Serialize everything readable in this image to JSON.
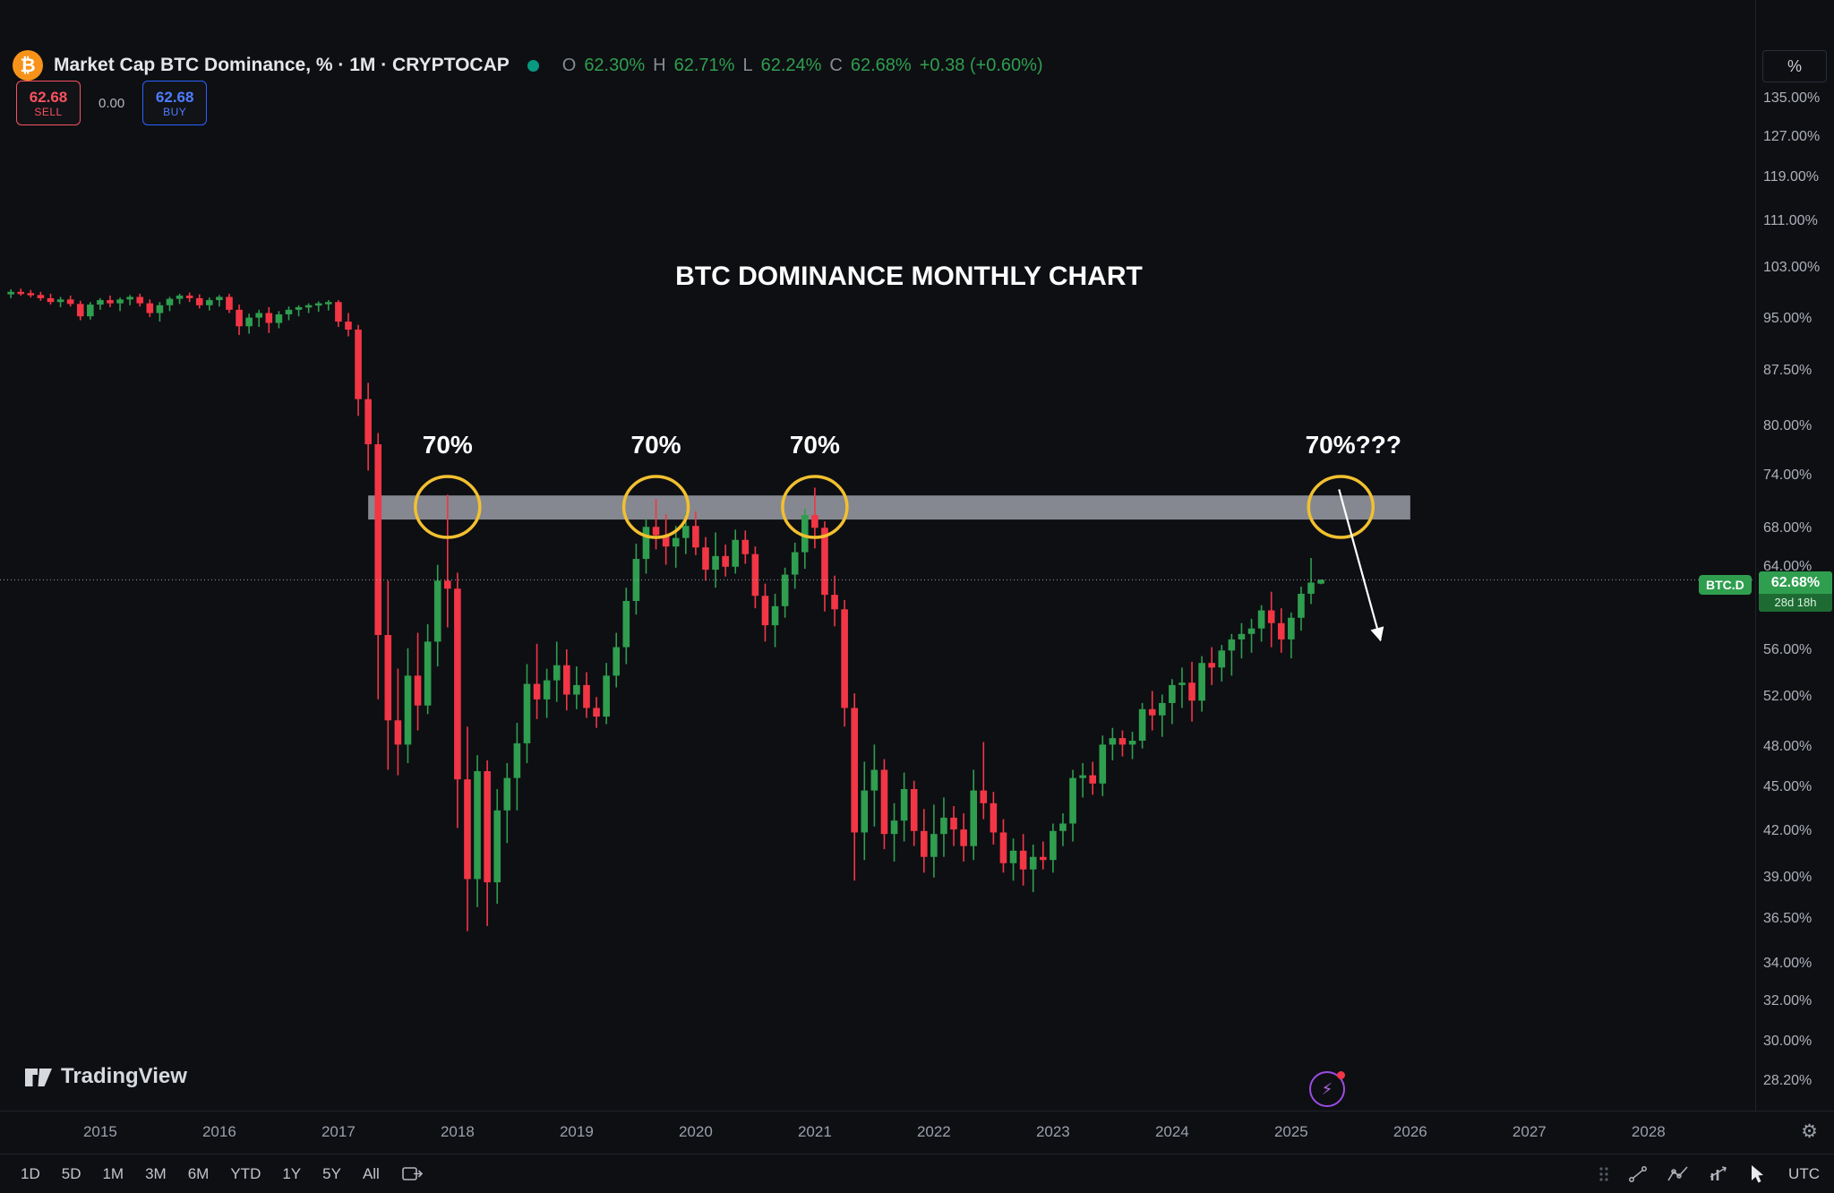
{
  "header": {
    "symbol": "Market Cap BTC Dominance, % · 1M · CRYPTOCAP",
    "ohlc": [
      {
        "key": "O",
        "value": "62.30%"
      },
      {
        "key": "H",
        "value": "62.71%"
      },
      {
        "key": "L",
        "value": "62.24%"
      },
      {
        "key": "C",
        "value": "62.68%"
      }
    ],
    "change": "+0.38 (+0.60%)",
    "sell_price": "62.68",
    "sell_label": "SELL",
    "spread": "0.00",
    "buy_price": "62.68",
    "buy_label": "BUY"
  },
  "icons": {
    "bitcoin": "₿",
    "gear": "⚙",
    "lightning": "⚡"
  },
  "price_axis": {
    "unit": "%",
    "ticks": [
      "135.00%",
      "127.00%",
      "119.00%",
      "111.00%",
      "103.00%",
      "95.00%",
      "87.50%",
      "80.00%",
      "74.00%",
      "68.00%",
      "64.00%",
      "56.00%",
      "52.00%",
      "48.00%",
      "45.00%",
      "42.00%",
      "39.00%",
      "36.50%",
      "34.00%",
      "32.00%",
      "30.00%",
      "28.20%"
    ]
  },
  "time_axis": {
    "years": [
      2015,
      2016,
      2017,
      2018,
      2019,
      2020,
      2021,
      2022,
      2023,
      2024,
      2025,
      2026,
      2027,
      2028
    ]
  },
  "price_label": {
    "symbol": "BTC.D",
    "value": "62.68%",
    "countdown": "28d 18h"
  },
  "footer": {
    "ranges": [
      "1D",
      "5D",
      "1M",
      "3M",
      "6M",
      "YTD",
      "1Y",
      "5Y",
      "All"
    ],
    "timezone": "UTC"
  },
  "branding": {
    "logo_text": "TradingView"
  },
  "chart_data": {
    "type": "candlestick",
    "symbol": "BTC.D",
    "timeframe": "1M",
    "title": "BTC DOMINANCE MONTHLY CHART",
    "y_axis": {
      "scale": "log",
      "min": 28.2,
      "max": 135,
      "unit": "%"
    },
    "x_axis": {
      "start": "2014-04",
      "end": "2028-12",
      "last_candle": "2025-04"
    },
    "current_price": 62.68,
    "colors": {
      "up": "#2f9e4f",
      "down": "#f23645",
      "band": "#8f939b",
      "circle": "#f2c030",
      "current_line": "#b2b5be",
      "sell": "#f7525f",
      "buy": "#2962ff",
      "badge": "#2f9e4f"
    },
    "resistance_zone": {
      "price_low": 69.0,
      "price_high": 71.7,
      "from": "2017-04",
      "to": "2026-01"
    },
    "annotations": [
      {
        "type": "circle",
        "month": "2017-12",
        "price": 70.4,
        "label": "70%"
      },
      {
        "type": "circle",
        "month": "2019-09",
        "price": 70.4,
        "label": "70%"
      },
      {
        "type": "circle",
        "month": "2021-01",
        "price": 70.4,
        "label": "70%"
      },
      {
        "type": "circle",
        "month": "2025-06",
        "price": 70.4,
        "label": "70%???",
        "label_dx": 14
      },
      {
        "type": "arrow",
        "from_month": "2025-06",
        "from_price": 72.4,
        "to_month": "2025-10",
        "to_price": 56.9
      }
    ],
    "candles": [
      [
        "2014-04",
        98.8,
        99.6,
        98.2,
        99.2
      ],
      [
        "2014-05",
        99.2,
        99.7,
        98.6,
        99.0
      ],
      [
        "2014-06",
        99.0,
        99.5,
        98.3,
        98.7
      ],
      [
        "2014-07",
        98.7,
        99.2,
        97.8,
        98.2
      ],
      [
        "2014-08",
        98.2,
        98.9,
        97.2,
        97.6
      ],
      [
        "2014-09",
        97.6,
        98.4,
        96.8,
        98.0
      ],
      [
        "2014-10",
        98.0,
        98.6,
        96.9,
        97.3
      ],
      [
        "2014-11",
        97.3,
        97.8,
        94.8,
        95.4
      ],
      [
        "2014-12",
        95.4,
        97.6,
        94.9,
        97.2
      ],
      [
        "2015-01",
        97.2,
        98.2,
        96.4,
        97.9
      ],
      [
        "2015-02",
        97.9,
        98.6,
        96.8,
        97.4
      ],
      [
        "2015-03",
        97.4,
        98.3,
        96.2,
        98.0
      ],
      [
        "2015-04",
        98.0,
        98.7,
        97.1,
        98.4
      ],
      [
        "2015-05",
        98.4,
        98.9,
        96.9,
        97.4
      ],
      [
        "2015-06",
        97.4,
        98.0,
        95.3,
        95.9
      ],
      [
        "2015-07",
        95.9,
        97.6,
        94.6,
        97.1
      ],
      [
        "2015-08",
        97.1,
        98.4,
        96.2,
        98.1
      ],
      [
        "2015-09",
        98.1,
        98.9,
        97.3,
        98.6
      ],
      [
        "2015-10",
        98.6,
        99.1,
        97.6,
        98.2
      ],
      [
        "2015-11",
        98.2,
        98.8,
        96.6,
        97.1
      ],
      [
        "2015-12",
        97.1,
        98.3,
        96.3,
        97.9
      ],
      [
        "2016-01",
        97.9,
        98.7,
        96.9,
        98.4
      ],
      [
        "2016-02",
        98.4,
        98.9,
        95.9,
        96.4
      ],
      [
        "2016-03",
        96.4,
        97.2,
        92.6,
        93.9
      ],
      [
        "2016-04",
        93.9,
        95.8,
        92.8,
        95.2
      ],
      [
        "2016-05",
        95.2,
        96.4,
        93.8,
        95.9
      ],
      [
        "2016-06",
        95.9,
        96.8,
        92.9,
        94.4
      ],
      [
        "2016-07",
        94.4,
        96.2,
        93.6,
        95.7
      ],
      [
        "2016-08",
        95.7,
        96.9,
        94.8,
        96.4
      ],
      [
        "2016-09",
        96.4,
        97.1,
        95.4,
        96.8
      ],
      [
        "2016-10",
        96.8,
        97.4,
        95.9,
        97.1
      ],
      [
        "2016-11",
        97.1,
        97.7,
        96.1,
        97.4
      ],
      [
        "2016-12",
        97.4,
        97.9,
        96.3,
        97.6
      ],
      [
        "2017-01",
        97.6,
        97.9,
        93.8,
        94.6
      ],
      [
        "2017-02",
        94.6,
        95.9,
        92.4,
        93.4
      ],
      [
        "2017-03",
        93.4,
        94.1,
        81.4,
        83.6
      ],
      [
        "2017-04",
        83.6,
        85.8,
        74.6,
        77.8
      ],
      [
        "2017-05",
        77.8,
        79.2,
        51.8,
        57.4
      ],
      [
        "2017-06",
        57.4,
        62.6,
        46.3,
        50.1
      ],
      [
        "2017-07",
        50.1,
        54.4,
        45.9,
        48.2
      ],
      [
        "2017-08",
        48.2,
        56.2,
        46.8,
        53.8
      ],
      [
        "2017-09",
        53.8,
        57.6,
        49.3,
        51.3
      ],
      [
        "2017-10",
        51.3,
        58.4,
        50.6,
        56.8
      ],
      [
        "2017-11",
        56.8,
        64.2,
        54.6,
        62.6
      ],
      [
        "2017-12",
        62.6,
        71.8,
        58.1,
        61.8
      ],
      [
        "2018-01",
        61.8,
        63.4,
        42.2,
        45.6
      ],
      [
        "2018-02",
        45.6,
        49.6,
        35.8,
        38.9
      ],
      [
        "2018-03",
        38.9,
        47.4,
        37.2,
        46.2
      ],
      [
        "2018-04",
        46.2,
        47.0,
        36.1,
        38.7
      ],
      [
        "2018-05",
        38.7,
        44.9,
        37.4,
        43.4
      ],
      [
        "2018-06",
        43.4,
        46.8,
        41.2,
        45.7
      ],
      [
        "2018-07",
        45.7,
        49.9,
        43.4,
        48.3
      ],
      [
        "2018-08",
        48.3,
        54.8,
        46.8,
        53.1
      ],
      [
        "2018-09",
        53.1,
        56.6,
        50.2,
        51.8
      ],
      [
        "2018-10",
        51.8,
        54.4,
        50.3,
        53.4
      ],
      [
        "2018-11",
        53.4,
        56.8,
        51.6,
        54.7
      ],
      [
        "2018-12",
        54.7,
        56.1,
        50.9,
        52.2
      ],
      [
        "2019-01",
        52.2,
        54.6,
        51.0,
        53.0
      ],
      [
        "2019-02",
        53.0,
        54.1,
        50.3,
        51.1
      ],
      [
        "2019-03",
        51.1,
        52.0,
        49.5,
        50.4
      ],
      [
        "2019-04",
        50.4,
        54.9,
        49.8,
        53.8
      ],
      [
        "2019-05",
        53.8,
        57.6,
        52.8,
        56.3
      ],
      [
        "2019-06",
        56.3,
        61.9,
        54.8,
        60.6
      ],
      [
        "2019-07",
        60.6,
        66.4,
        59.3,
        64.8
      ],
      [
        "2019-08",
        64.8,
        69.1,
        63.3,
        68.2
      ],
      [
        "2019-09",
        68.2,
        71.3,
        65.8,
        67.3
      ],
      [
        "2019-10",
        67.3,
        69.6,
        64.2,
        66.1
      ],
      [
        "2019-11",
        66.1,
        68.3,
        63.9,
        67.0
      ],
      [
        "2019-12",
        67.0,
        69.8,
        65.3,
        68.3
      ],
      [
        "2020-01",
        68.3,
        69.9,
        65.2,
        66.0
      ],
      [
        "2020-02",
        66.0,
        67.1,
        62.6,
        63.7
      ],
      [
        "2020-03",
        63.7,
        67.6,
        61.9,
        65.1
      ],
      [
        "2020-04",
        65.1,
        66.3,
        63.0,
        64.0
      ],
      [
        "2020-05",
        64.0,
        67.9,
        63.3,
        66.8
      ],
      [
        "2020-06",
        66.8,
        67.8,
        64.3,
        65.3
      ],
      [
        "2020-07",
        65.3,
        66.1,
        59.9,
        61.1
      ],
      [
        "2020-08",
        61.1,
        62.3,
        56.8,
        58.3
      ],
      [
        "2020-09",
        58.3,
        61.3,
        56.3,
        60.1
      ],
      [
        "2020-10",
        60.1,
        63.9,
        59.0,
        63.2
      ],
      [
        "2020-11",
        63.2,
        66.5,
        61.8,
        65.5
      ],
      [
        "2020-12",
        65.5,
        70.2,
        63.8,
        69.5
      ],
      [
        "2021-01",
        69.5,
        72.6,
        65.9,
        68.1
      ],
      [
        "2021-02",
        68.1,
        68.8,
        59.6,
        61.2
      ],
      [
        "2021-03",
        61.2,
        63.1,
        58.2,
        59.8
      ],
      [
        "2021-04",
        59.8,
        60.7,
        49.6,
        51.1
      ],
      [
        "2021-05",
        51.1,
        52.3,
        38.8,
        41.9
      ],
      [
        "2021-06",
        41.9,
        46.9,
        40.1,
        44.8
      ],
      [
        "2021-07",
        44.8,
        48.2,
        42.3,
        46.3
      ],
      [
        "2021-08",
        46.3,
        47.1,
        40.8,
        41.8
      ],
      [
        "2021-09",
        41.8,
        43.9,
        40.0,
        42.7
      ],
      [
        "2021-10",
        42.7,
        46.1,
        41.3,
        44.9
      ],
      [
        "2021-11",
        44.9,
        45.5,
        41.0,
        42.0
      ],
      [
        "2021-12",
        42.0,
        43.5,
        39.3,
        40.3
      ],
      [
        "2022-01",
        40.3,
        43.8,
        39.0,
        41.8
      ],
      [
        "2022-02",
        41.8,
        44.3,
        40.3,
        42.9
      ],
      [
        "2022-03",
        42.9,
        43.7,
        41.0,
        42.1
      ],
      [
        "2022-04",
        42.1,
        43.2,
        40.0,
        41.0
      ],
      [
        "2022-05",
        41.0,
        46.3,
        40.1,
        44.8
      ],
      [
        "2022-06",
        44.8,
        48.4,
        42.8,
        43.9
      ],
      [
        "2022-07",
        43.9,
        44.7,
        41.1,
        41.9
      ],
      [
        "2022-08",
        41.9,
        42.8,
        39.3,
        39.9
      ],
      [
        "2022-09",
        39.9,
        41.5,
        38.8,
        40.7
      ],
      [
        "2022-10",
        40.7,
        41.8,
        38.5,
        39.5
      ],
      [
        "2022-11",
        39.5,
        41.1,
        38.1,
        40.3
      ],
      [
        "2022-12",
        40.3,
        41.3,
        39.5,
        40.1
      ],
      [
        "2023-01",
        40.1,
        42.5,
        39.3,
        42.0
      ],
      [
        "2023-02",
        42.0,
        43.2,
        41.0,
        42.5
      ],
      [
        "2023-03",
        42.5,
        46.3,
        41.3,
        45.7
      ],
      [
        "2023-04",
        45.7,
        46.8,
        44.3,
        45.9
      ],
      [
        "2023-05",
        45.9,
        46.9,
        44.5,
        45.3
      ],
      [
        "2023-06",
        45.3,
        48.9,
        44.4,
        48.2
      ],
      [
        "2023-07",
        48.2,
        49.5,
        47.0,
        48.7
      ],
      [
        "2023-08",
        48.7,
        49.3,
        47.3,
        48.2
      ],
      [
        "2023-09",
        48.2,
        49.2,
        47.1,
        48.5
      ],
      [
        "2023-10",
        48.5,
        51.5,
        47.9,
        51.0
      ],
      [
        "2023-11",
        51.0,
        52.5,
        49.3,
        50.5
      ],
      [
        "2023-12",
        50.5,
        52.2,
        48.8,
        51.5
      ],
      [
        "2024-01",
        51.5,
        53.5,
        49.8,
        53.0
      ],
      [
        "2024-02",
        53.0,
        54.5,
        51.1,
        53.2
      ],
      [
        "2024-03",
        53.2,
        55.0,
        50.0,
        51.7
      ],
      [
        "2024-04",
        51.7,
        55.5,
        50.8,
        54.9
      ],
      [
        "2024-05",
        54.9,
        56.3,
        53.0,
        54.5
      ],
      [
        "2024-06",
        54.5,
        56.5,
        53.3,
        56.0
      ],
      [
        "2024-07",
        56.0,
        57.5,
        53.8,
        57.0
      ],
      [
        "2024-08",
        57.0,
        58.5,
        55.3,
        57.5
      ],
      [
        "2024-09",
        57.5,
        58.9,
        55.8,
        58.0
      ],
      [
        "2024-10",
        58.0,
        60.2,
        56.8,
        59.7
      ],
      [
        "2024-11",
        59.7,
        61.5,
        56.3,
        58.5
      ],
      [
        "2024-12",
        58.5,
        59.9,
        55.8,
        57.0
      ],
      [
        "2025-01",
        57.0,
        59.5,
        55.3,
        59.0
      ],
      [
        "2025-02",
        59.0,
        62.0,
        57.8,
        61.3
      ],
      [
        "2025-03",
        61.3,
        64.9,
        60.3,
        62.4
      ],
      [
        "2025-04",
        62.3,
        62.71,
        62.24,
        62.68
      ]
    ]
  }
}
